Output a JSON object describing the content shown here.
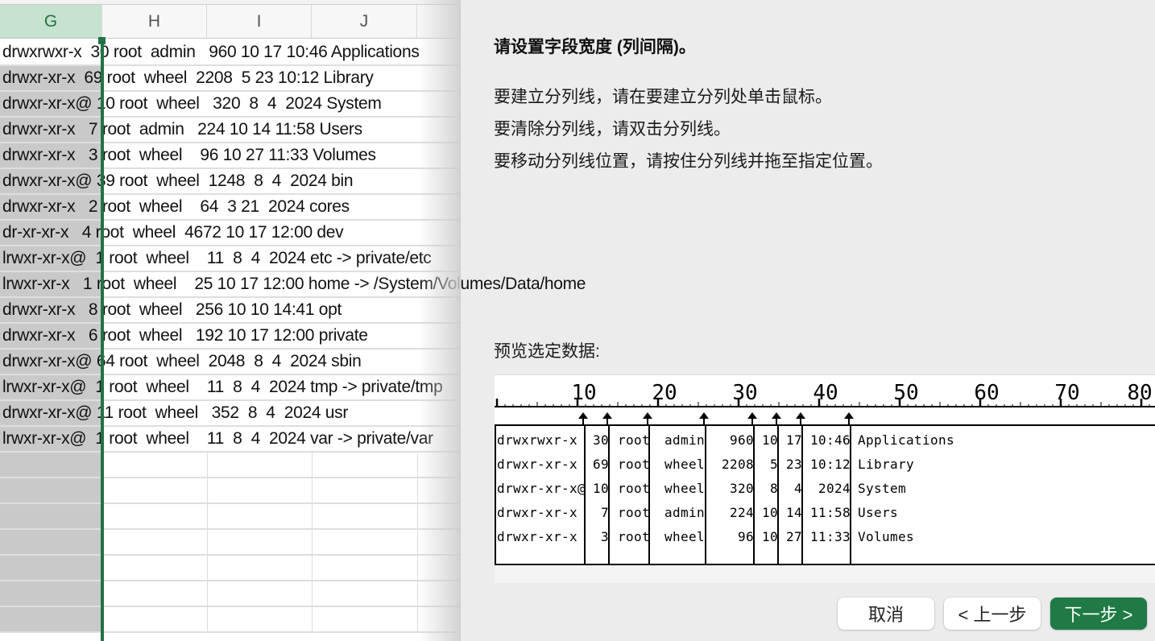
{
  "sheet": {
    "columns": [
      "G",
      "H",
      "I",
      "J"
    ],
    "selected_column": "G",
    "rows": [
      "drwxrwxr-x  30 root  admin   960 10 17 10:46 Applications",
      "drwxr-xr-x  69 root  wheel  2208  5 23 10:12 Library",
      "drwxr-xr-x@ 10 root  wheel   320  8  4  2024 System",
      "drwxr-xr-x   7 root  admin   224 10 14 11:58 Users",
      "drwxr-xr-x   3 root  wheel    96 10 27 11:33 Volumes",
      "drwxr-xr-x@ 39 root  wheel  1248  8  4  2024 bin",
      "drwxr-xr-x   2 root  wheel    64  3 21  2024 cores",
      "dr-xr-xr-x   4 root  wheel  4672 10 17 12:00 dev",
      "lrwxr-xr-x@  1 root  wheel    11  8  4  2024 etc -> private/etc",
      "lrwxr-xr-x   1 root  wheel    25 10 17 12:00 home -> /System/Volumes/Data/home",
      "drwxr-xr-x   8 root  wheel   256 10 10 14:41 opt",
      "drwxr-xr-x   6 root  wheel   192 10 17 12:00 private",
      "drwxr-xr-x@ 64 root  wheel  2048  8  4  2024 sbin",
      "lrwxr-xr-x@  1 root  wheel    11  8  4  2024 tmp -> private/tmp",
      "drwxr-xr-x@ 11 root  wheel   352  8  4  2024 usr",
      "lrwxr-xr-x@  1 root  wheel    11  8  4  2024 var -> private/var"
    ]
  },
  "wizard": {
    "title": "请设置字段宽度 (列间隔)。",
    "instructions": [
      "要建立分列线，请在要建立分列处单击鼠标。",
      "要清除分列线，请双击分列线。",
      "要移动分列线位置，请按住分列线并拖至指定位置。"
    ],
    "preview_label": "预览选定数据:",
    "ruler_labels": [
      "10",
      "20",
      "30",
      "40",
      "50",
      "60",
      "70",
      "80"
    ],
    "column_breaks": [
      11,
      14,
      19,
      26,
      32,
      35,
      38,
      44
    ],
    "preview_rows": [
      [
        "drwxrwxr-x",
        "30",
        "root",
        "admin",
        "960",
        "10",
        "17",
        "10:46",
        "Applications"
      ],
      [
        "drwxr-xr-x",
        "69",
        "root",
        "wheel",
        "2208",
        "5",
        "23",
        "10:12",
        "Library"
      ],
      [
        "drwxr-xr-x@",
        "10",
        "root",
        "wheel",
        "320",
        "8",
        "4",
        "2024",
        "System"
      ],
      [
        "drwxr-xr-x",
        "7",
        "root",
        "admin",
        "224",
        "10",
        "14",
        "11:58",
        "Users"
      ],
      [
        "drwxr-xr-x",
        "3",
        "root",
        "wheel",
        "96",
        "10",
        "27",
        "11:33",
        "Volumes"
      ]
    ],
    "buttons": {
      "cancel": "取消",
      "back": "< 上一步",
      "next": "下一步 >"
    }
  },
  "colors": {
    "accent": "#217346",
    "button_primary": "#1f7a45"
  }
}
